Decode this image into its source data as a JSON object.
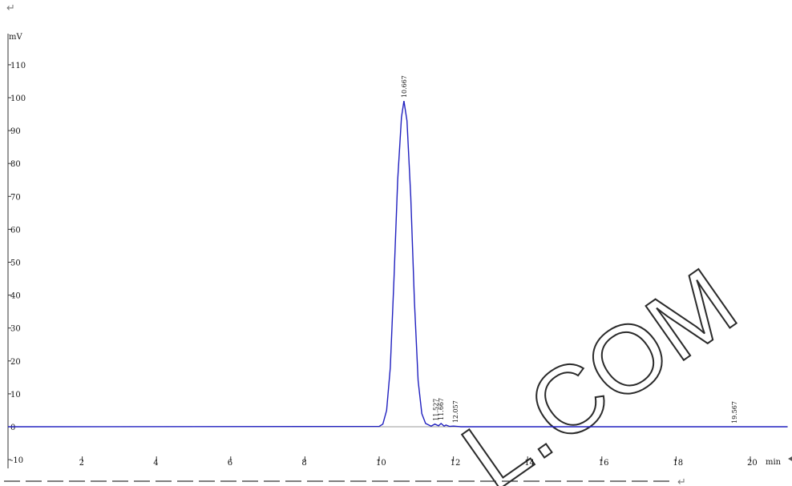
{
  "page": {
    "top_mark": "↵",
    "bottom_mark": "↵",
    "watermark": "L.COM"
  },
  "chart_data": {
    "type": "line",
    "title": "",
    "xlabel": "min",
    "ylabel": "mV",
    "xlim": [
      0,
      21
    ],
    "ylim": [
      -10,
      115
    ],
    "x_ticks": [
      2,
      4,
      6,
      8,
      10,
      12,
      14,
      16,
      18,
      20
    ],
    "y_ticks": [
      -10,
      0,
      10,
      20,
      30,
      40,
      50,
      60,
      70,
      80,
      90,
      100,
      110
    ],
    "grid": false,
    "colors": {
      "trace": "#1f1fbf",
      "axis": "#333333"
    },
    "series": [
      {
        "x": [
          0,
          10.0,
          10.1,
          10.2,
          10.3,
          10.4,
          10.5,
          10.6,
          10.667,
          10.75,
          10.85,
          10.95,
          11.05,
          11.15,
          11.25,
          11.4,
          11.5,
          11.6,
          11.667,
          11.75,
          11.8,
          11.9,
          12.0,
          12.1,
          12.2,
          13,
          15,
          17,
          19.5,
          21
        ],
        "y": [
          0,
          0.1,
          0.8,
          5,
          18,
          45,
          75,
          94,
          99,
          93,
          70,
          38,
          14,
          4,
          1,
          0.2,
          0.8,
          0.3,
          1.0,
          0.2,
          0.5,
          0.1,
          0.2,
          0.1,
          0,
          0,
          0,
          0,
          0,
          0
        ]
      }
    ],
    "peak_labels": [
      {
        "x": 10.667,
        "y": 99,
        "label": "10.667"
      },
      {
        "x": 11.527,
        "y": 0.8,
        "label": "11.527"
      },
      {
        "x": 11.667,
        "y": 1.0,
        "label": "11.667"
      },
      {
        "x": 12.057,
        "y": 0.2,
        "label": "12.057"
      },
      {
        "x": 19.567,
        "y": 0,
        "label": "19.567"
      }
    ]
  }
}
